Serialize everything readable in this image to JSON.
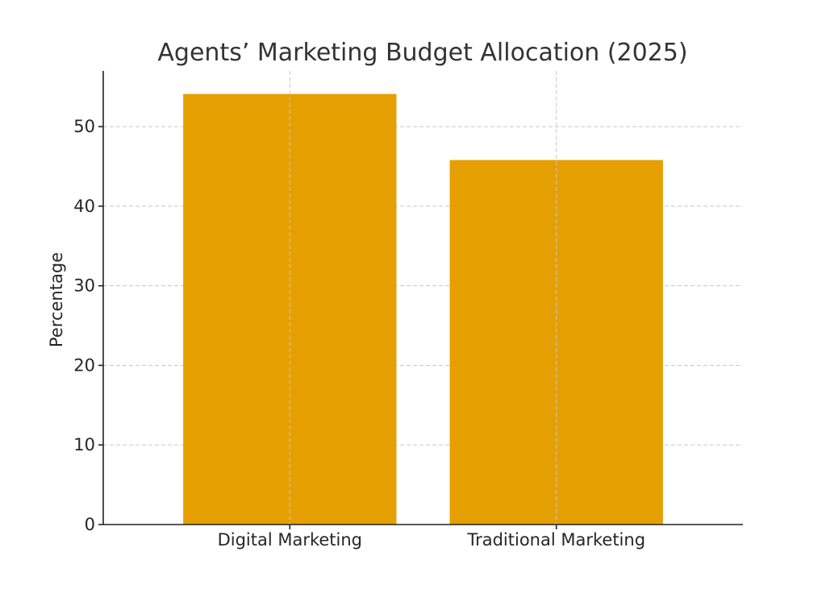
{
  "chart_data": {
    "type": "bar",
    "title": "Agents’ Marketing Budget Allocation (2025)",
    "xlabel": "",
    "ylabel": "Percentage",
    "categories": [
      "Digital Marketing",
      "Traditional Marketing"
    ],
    "values": [
      54.1,
      45.8
    ],
    "ylim": [
      0,
      57
    ],
    "yticks": [
      0,
      10,
      20,
      30,
      40,
      50
    ],
    "grid": true,
    "bar_color": "#E69F00"
  }
}
